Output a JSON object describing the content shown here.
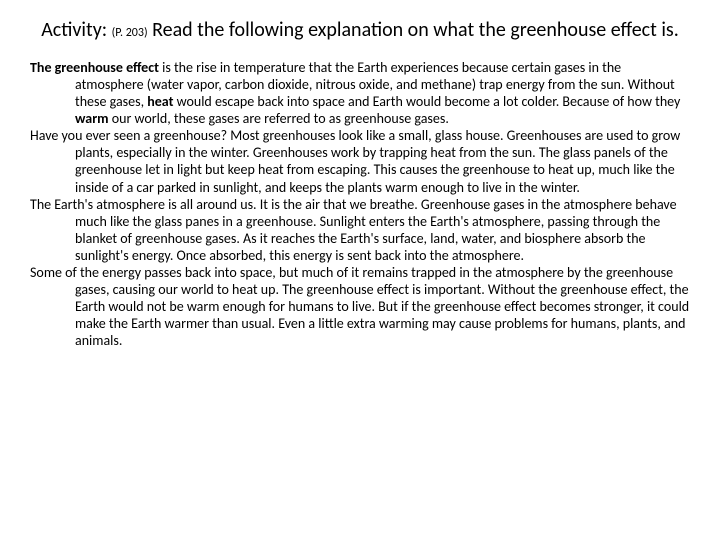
{
  "title": {
    "prefix": "Activity:",
    "sub": "(P. 203)",
    "main": "Read the following explanation on what the greenhouse effect is."
  },
  "paragraphs": {
    "p1_lead": "The greenhouse effect",
    "p1_body": " is the rise in temperature that the Earth experiences because certain gases in the atmosphere (water vapor, carbon dioxide, nitrous oxide, and methane) trap energy from the sun. Without these gases, ",
    "p1_bold2": "heat",
    "p1_body2": " would escape back into space and Earth would become a lot colder. Because of how they ",
    "p1_bold3": "warm",
    "p1_body3": " our world, these gases are referred to as greenhouse gases.",
    "p2": "Have you ever seen a greenhouse? Most greenhouses look like a small, glass house. Greenhouses are used to grow plants, especially in the winter. Greenhouses work by trapping heat from the sun. The glass panels of the greenhouse let in light but keep heat from escaping. This causes the greenhouse to heat up, much like the inside of a car parked in sunlight, and keeps the plants warm enough to live in the winter.",
    "p3": "The Earth's atmosphere is all around us. It is the air that we breathe. Greenhouse gases in the atmosphere behave much like the glass panes in a greenhouse. Sunlight enters the Earth's atmosphere, passing through the blanket of greenhouse gases. As it reaches the Earth's surface, land, water, and biosphere absorb the sunlight's energy. Once absorbed, this energy is sent back into the atmosphere.",
    "p4": "Some of the energy passes back into space, but much of it remains trapped in the atmosphere by the greenhouse gases, causing our world to heat up. The greenhouse effect is important. Without the greenhouse effect, the Earth would not be warm enough for humans to live. But if the greenhouse effect becomes stronger, it could make the Earth warmer than usual. Even a little extra warming may cause problems for humans, plants, and animals."
  },
  "colors": {
    "background": "#ffffff",
    "text": "#000000"
  },
  "fonts": {
    "title_size": 20,
    "sub_size": 12,
    "body_size": 14
  }
}
